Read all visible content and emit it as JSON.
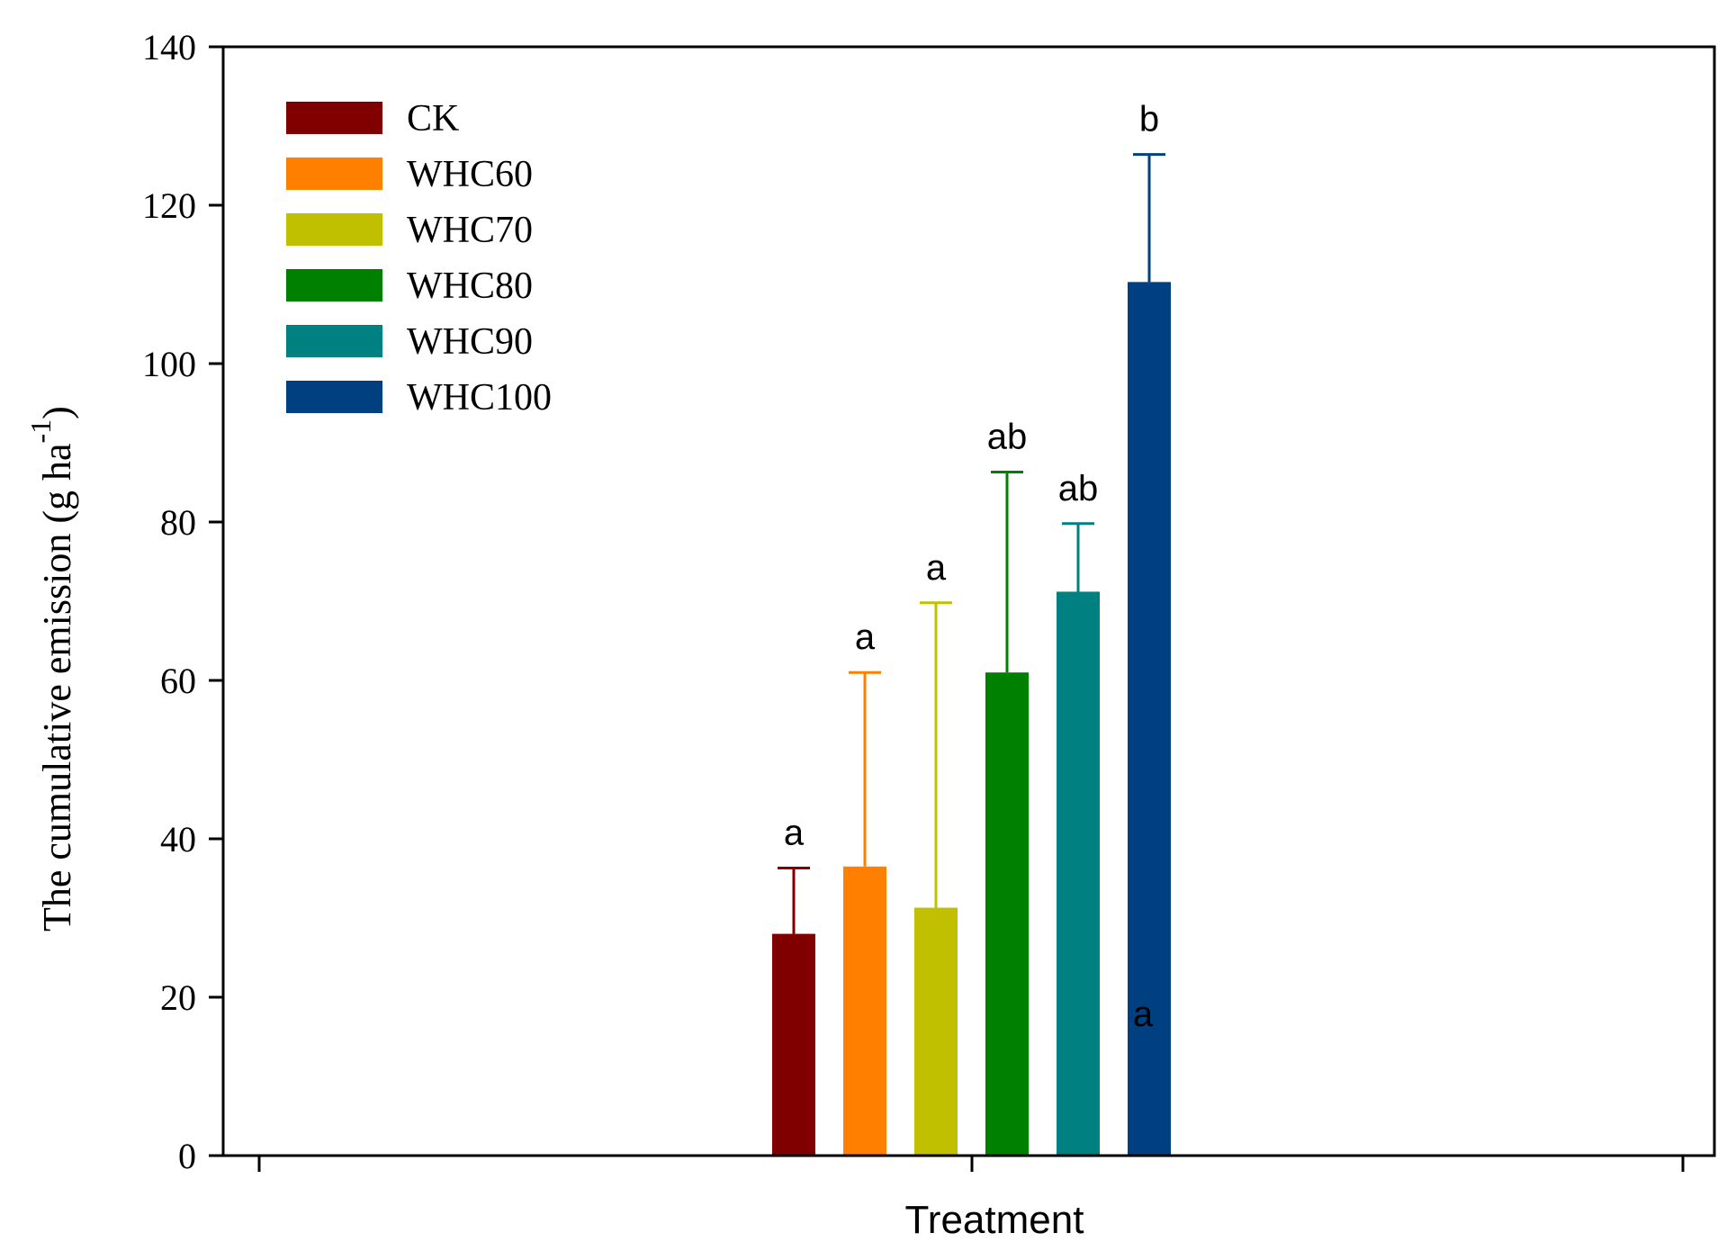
{
  "chart_data": {
    "type": "bar",
    "title": "",
    "xlabel": "Treatment",
    "ylabel": "The cumulative emission (g ha",
    "ylabel_superscript": "-1",
    "ylabel_close": ")",
    "ylim": [
      0,
      140
    ],
    "yticks": [
      0,
      20,
      40,
      60,
      80,
      100,
      120,
      140
    ],
    "ytick_labels": [
      "0",
      "20",
      "40",
      "60",
      "80",
      "100",
      "120",
      "140"
    ],
    "legend_position": "top-left",
    "series": [
      {
        "name": "CK",
        "value": 28,
        "error": 8.3,
        "color": "#800000",
        "letter": "a"
      },
      {
        "name": "WHC60",
        "value": 36.5,
        "error": 24.5,
        "color": "#ff8000",
        "letter": "a"
      },
      {
        "name": "WHC70",
        "value": 31.3,
        "error": 38.5,
        "color": "#c0c000",
        "letter": "a"
      },
      {
        "name": "WHC80",
        "value": 61,
        "error": 25.3,
        "color": "#008000",
        "letter": "ab"
      },
      {
        "name": "WHC90",
        "value": 71.2,
        "error": 8.6,
        "color": "#008080",
        "letter": "ab"
      },
      {
        "name": "WHC100",
        "value": 110.3,
        "error": 16.1,
        "color": "#004080",
        "letter": "b"
      }
    ],
    "extra_annotation": "a"
  }
}
